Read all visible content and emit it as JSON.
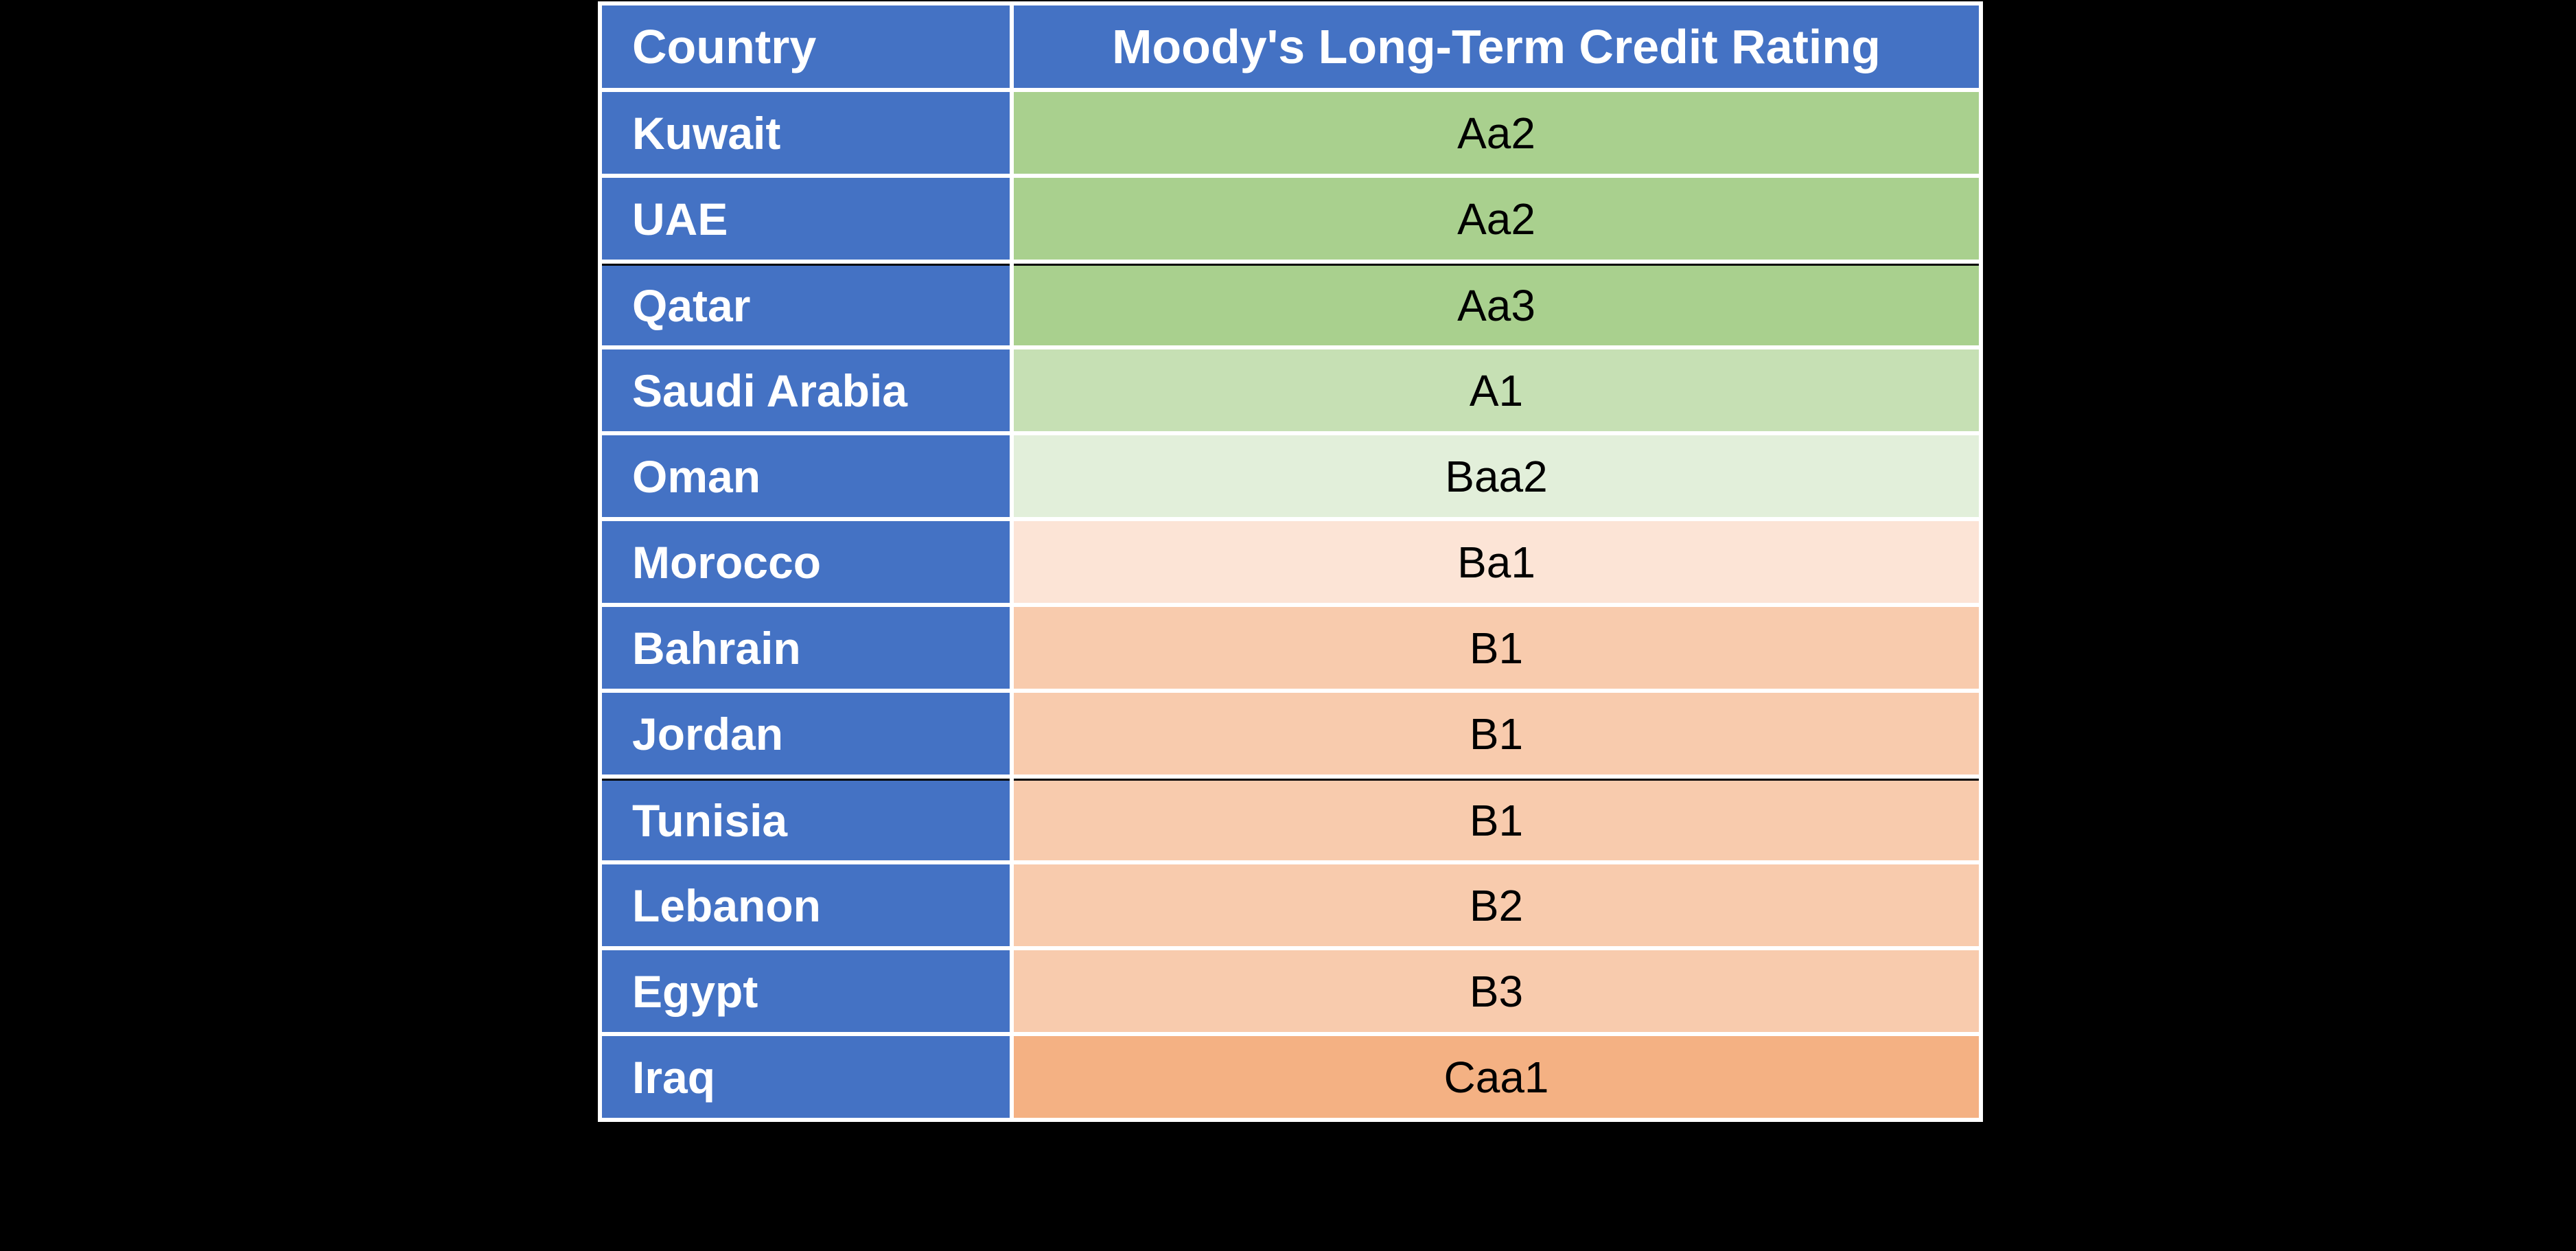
{
  "table": {
    "title_cells": {
      "country_header": "Country",
      "rating_header": "Moody's Long-Term Credit Rating"
    },
    "columns": [
      "Country",
      "Moody's Long-Term Credit Rating"
    ],
    "rows": [
      {
        "country": "Kuwait",
        "rating": "Aa2",
        "rating_bg": "#A9D08E",
        "separator_above": false
      },
      {
        "country": "UAE",
        "rating": "Aa2",
        "rating_bg": "#A9D08E",
        "separator_above": false
      },
      {
        "country": "Qatar",
        "rating": "Aa3",
        "rating_bg": "#A9D08E",
        "separator_above": true
      },
      {
        "country": "Saudi Arabia",
        "rating": "A1",
        "rating_bg": "#C6E0B4",
        "separator_above": false
      },
      {
        "country": "Oman",
        "rating": "Baa2",
        "rating_bg": "#E2EFDA",
        "separator_above": false
      },
      {
        "country": "Morocco",
        "rating": "Ba1",
        "rating_bg": "#FCE4D6",
        "separator_above": false
      },
      {
        "country": "Bahrain",
        "rating": "B1",
        "rating_bg": "#F8CBAD",
        "separator_above": false
      },
      {
        "country": "Jordan",
        "rating": "B1",
        "rating_bg": "#F8CBAD",
        "separator_above": false
      },
      {
        "country": "Tunisia",
        "rating": "B1",
        "rating_bg": "#F8CBAD",
        "separator_above": true
      },
      {
        "country": "Lebanon",
        "rating": "B2",
        "rating_bg": "#F8CBAD",
        "separator_above": false
      },
      {
        "country": "Egypt",
        "rating": "B3",
        "rating_bg": "#F8CBAD",
        "separator_above": false
      },
      {
        "country": "Iraq",
        "rating": "Caa1",
        "rating_bg": "#F4B183",
        "separator_above": false
      }
    ],
    "colors": {
      "canvas_bg": "#000000",
      "header_bg": "#4472C4",
      "header_text": "#FFFFFF",
      "country_cell_bg": "#4472C4",
      "country_text": "#FFFFFF",
      "rating_text": "#000000",
      "cell_gap": "#FFFFFF",
      "separator_line": "#000000"
    }
  }
}
